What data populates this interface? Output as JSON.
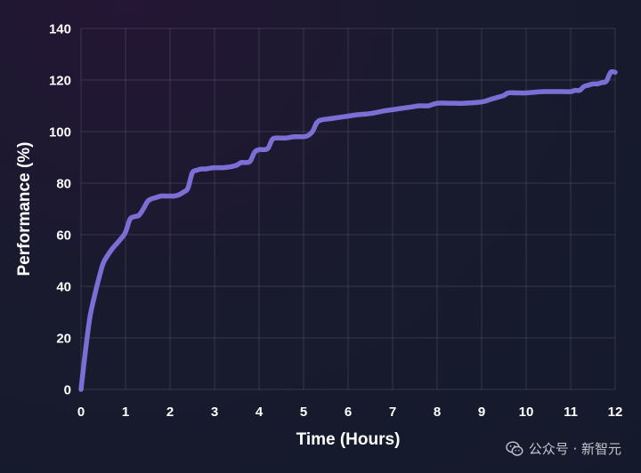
{
  "chart_data": {
    "type": "line",
    "title": "",
    "xlabel": "Time (Hours)",
    "ylabel": "Performance (%)",
    "xlim": [
      0,
      12
    ],
    "ylim": [
      0,
      140
    ],
    "x_ticks": [
      "0",
      "1",
      "2",
      "3",
      "4",
      "5",
      "6",
      "7",
      "8",
      "9",
      "10",
      "11",
      "12"
    ],
    "y_ticks": [
      "0",
      "20",
      "40",
      "60",
      "80",
      "100",
      "120",
      "140"
    ],
    "grid": true,
    "legend": "none",
    "series": [
      {
        "color": "#7b6fd6",
        "x": [
          0,
          0.1,
          0.2,
          0.3,
          0.4,
          0.5,
          0.6,
          0.7,
          0.8,
          0.9,
          1.0,
          1.1,
          1.2,
          1.3,
          1.4,
          1.5,
          1.6,
          1.7,
          1.8,
          1.9,
          2.0,
          2.1,
          2.2,
          2.3,
          2.4,
          2.5,
          2.6,
          2.7,
          2.8,
          2.9,
          3.0,
          3.2,
          3.4,
          3.5,
          3.6,
          3.7,
          3.8,
          3.9,
          4.0,
          4.1,
          4.2,
          4.3,
          4.4,
          4.5,
          4.6,
          4.8,
          5.0,
          5.1,
          5.2,
          5.3,
          5.4,
          5.6,
          5.8,
          6.0,
          6.2,
          6.5,
          6.8,
          7.0,
          7.2,
          7.4,
          7.6,
          7.8,
          8.0,
          8.3,
          8.6,
          9.0,
          9.2,
          9.4,
          9.5,
          9.6,
          9.8,
          10.0,
          10.4,
          10.8,
          11.0,
          11.1,
          11.2,
          11.3,
          11.4,
          11.5,
          11.6,
          11.7,
          11.8,
          11.9,
          12.0
        ],
        "y": [
          0,
          15,
          28,
          36,
          43,
          49,
          52,
          54.5,
          56.5,
          58.5,
          61,
          66,
          67,
          67.5,
          70,
          73,
          74,
          74.5,
          75,
          75,
          75,
          75,
          75.5,
          76.5,
          78,
          84,
          85,
          85.5,
          85.5,
          85.8,
          86,
          86,
          86.5,
          87,
          88,
          88,
          88.5,
          92,
          93,
          93,
          93.5,
          97,
          97.5,
          97.5,
          97.5,
          98,
          98,
          98.5,
          100,
          103.5,
          104.5,
          105,
          105.5,
          106,
          106.5,
          107,
          108,
          108.5,
          109,
          109.5,
          110,
          110,
          111,
          111,
          111,
          111.5,
          112.5,
          113.5,
          114,
          115,
          115,
          115,
          115.5,
          115.5,
          115.5,
          116,
          116,
          117.5,
          118,
          118.5,
          118.5,
          119,
          119.5,
          123,
          123
        ]
      }
    ]
  },
  "watermark": {
    "text": "公众号 · 新智元",
    "icon": "wechat-icon"
  }
}
